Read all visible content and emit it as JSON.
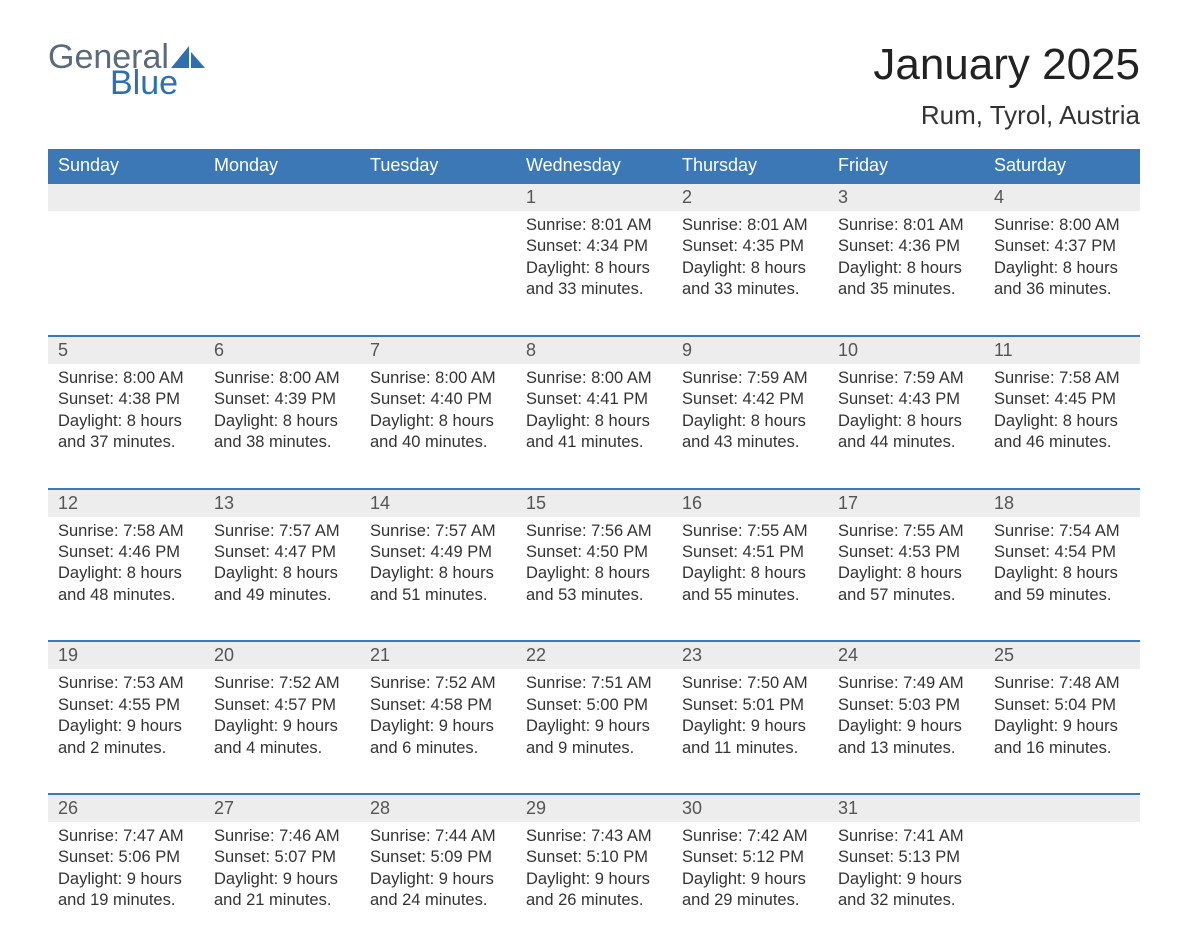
{
  "logo": {
    "word1": "General",
    "word2": "Blue",
    "sail_color": "#2f6fb0",
    "text1_color": "#5a6a7a",
    "text2_color": "#2f6fb0"
  },
  "title": "January 2025",
  "location": "Rum, Tyrol, Austria",
  "colors": {
    "header_bg": "#3b78b5",
    "header_text": "#ffffff",
    "row_border": "#3b78b5",
    "daynum_bg": "#ededed",
    "body_text": "#333333",
    "page_bg": "#ffffff"
  },
  "days_of_week": [
    "Sunday",
    "Monday",
    "Tuesday",
    "Wednesday",
    "Thursday",
    "Friday",
    "Saturday"
  ],
  "weeks": [
    [
      null,
      null,
      null,
      {
        "n": "1",
        "sunrise": "8:01 AM",
        "sunset": "4:34 PM",
        "daylight": "8 hours and 33 minutes."
      },
      {
        "n": "2",
        "sunrise": "8:01 AM",
        "sunset": "4:35 PM",
        "daylight": "8 hours and 33 minutes."
      },
      {
        "n": "3",
        "sunrise": "8:01 AM",
        "sunset": "4:36 PM",
        "daylight": "8 hours and 35 minutes."
      },
      {
        "n": "4",
        "sunrise": "8:00 AM",
        "sunset": "4:37 PM",
        "daylight": "8 hours and 36 minutes."
      }
    ],
    [
      {
        "n": "5",
        "sunrise": "8:00 AM",
        "sunset": "4:38 PM",
        "daylight": "8 hours and 37 minutes."
      },
      {
        "n": "6",
        "sunrise": "8:00 AM",
        "sunset": "4:39 PM",
        "daylight": "8 hours and 38 minutes."
      },
      {
        "n": "7",
        "sunrise": "8:00 AM",
        "sunset": "4:40 PM",
        "daylight": "8 hours and 40 minutes."
      },
      {
        "n": "8",
        "sunrise": "8:00 AM",
        "sunset": "4:41 PM",
        "daylight": "8 hours and 41 minutes."
      },
      {
        "n": "9",
        "sunrise": "7:59 AM",
        "sunset": "4:42 PM",
        "daylight": "8 hours and 43 minutes."
      },
      {
        "n": "10",
        "sunrise": "7:59 AM",
        "sunset": "4:43 PM",
        "daylight": "8 hours and 44 minutes."
      },
      {
        "n": "11",
        "sunrise": "7:58 AM",
        "sunset": "4:45 PM",
        "daylight": "8 hours and 46 minutes."
      }
    ],
    [
      {
        "n": "12",
        "sunrise": "7:58 AM",
        "sunset": "4:46 PM",
        "daylight": "8 hours and 48 minutes."
      },
      {
        "n": "13",
        "sunrise": "7:57 AM",
        "sunset": "4:47 PM",
        "daylight": "8 hours and 49 minutes."
      },
      {
        "n": "14",
        "sunrise": "7:57 AM",
        "sunset": "4:49 PM",
        "daylight": "8 hours and 51 minutes."
      },
      {
        "n": "15",
        "sunrise": "7:56 AM",
        "sunset": "4:50 PM",
        "daylight": "8 hours and 53 minutes."
      },
      {
        "n": "16",
        "sunrise": "7:55 AM",
        "sunset": "4:51 PM",
        "daylight": "8 hours and 55 minutes."
      },
      {
        "n": "17",
        "sunrise": "7:55 AM",
        "sunset": "4:53 PM",
        "daylight": "8 hours and 57 minutes."
      },
      {
        "n": "18",
        "sunrise": "7:54 AM",
        "sunset": "4:54 PM",
        "daylight": "8 hours and 59 minutes."
      }
    ],
    [
      {
        "n": "19",
        "sunrise": "7:53 AM",
        "sunset": "4:55 PM",
        "daylight": "9 hours and 2 minutes."
      },
      {
        "n": "20",
        "sunrise": "7:52 AM",
        "sunset": "4:57 PM",
        "daylight": "9 hours and 4 minutes."
      },
      {
        "n": "21",
        "sunrise": "7:52 AM",
        "sunset": "4:58 PM",
        "daylight": "9 hours and 6 minutes."
      },
      {
        "n": "22",
        "sunrise": "7:51 AM",
        "sunset": "5:00 PM",
        "daylight": "9 hours and 9 minutes."
      },
      {
        "n": "23",
        "sunrise": "7:50 AM",
        "sunset": "5:01 PM",
        "daylight": "9 hours and 11 minutes."
      },
      {
        "n": "24",
        "sunrise": "7:49 AM",
        "sunset": "5:03 PM",
        "daylight": "9 hours and 13 minutes."
      },
      {
        "n": "25",
        "sunrise": "7:48 AM",
        "sunset": "5:04 PM",
        "daylight": "9 hours and 16 minutes."
      }
    ],
    [
      {
        "n": "26",
        "sunrise": "7:47 AM",
        "sunset": "5:06 PM",
        "daylight": "9 hours and 19 minutes."
      },
      {
        "n": "27",
        "sunrise": "7:46 AM",
        "sunset": "5:07 PM",
        "daylight": "9 hours and 21 minutes."
      },
      {
        "n": "28",
        "sunrise": "7:44 AM",
        "sunset": "5:09 PM",
        "daylight": "9 hours and 24 minutes."
      },
      {
        "n": "29",
        "sunrise": "7:43 AM",
        "sunset": "5:10 PM",
        "daylight": "9 hours and 26 minutes."
      },
      {
        "n": "30",
        "sunrise": "7:42 AM",
        "sunset": "5:12 PM",
        "daylight": "9 hours and 29 minutes."
      },
      {
        "n": "31",
        "sunrise": "7:41 AM",
        "sunset": "5:13 PM",
        "daylight": "9 hours and 32 minutes."
      },
      null
    ]
  ],
  "labels": {
    "sunrise": "Sunrise: ",
    "sunset": "Sunset: ",
    "daylight": "Daylight: "
  }
}
